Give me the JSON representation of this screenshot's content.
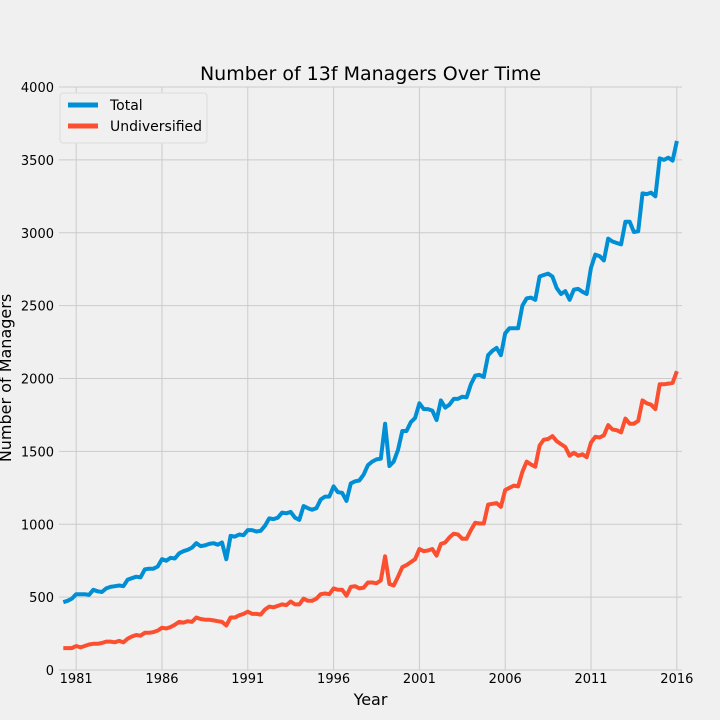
{
  "chart_data": {
    "type": "line",
    "title": "Number of 13f Managers Over Time",
    "xlabel": "Year",
    "ylabel": "Number of Managers",
    "xlim": [
      1980.0,
      2016.3
    ],
    "ylim": [
      0,
      4000
    ],
    "x_ticks": [
      1981,
      1986,
      1991,
      1996,
      2001,
      2006,
      2011,
      2016
    ],
    "y_ticks": [
      0,
      500,
      1000,
      1500,
      2000,
      2500,
      3000,
      3500,
      4000
    ],
    "grid": true,
    "legend_position": "top-left",
    "x": [
      1980.25,
      1980.5,
      1980.75,
      1981.0,
      1981.25,
      1981.5,
      1981.75,
      1982.0,
      1982.25,
      1982.5,
      1982.75,
      1983.0,
      1983.25,
      1983.5,
      1983.75,
      1984.0,
      1984.25,
      1984.5,
      1984.75,
      1985.0,
      1985.25,
      1985.5,
      1985.75,
      1986.0,
      1986.25,
      1986.5,
      1986.75,
      1987.0,
      1987.25,
      1987.5,
      1987.75,
      1988.0,
      1988.25,
      1988.5,
      1988.75,
      1989.0,
      1989.25,
      1989.5,
      1989.75,
      1990.0,
      1990.25,
      1990.5,
      1990.75,
      1991.0,
      1991.25,
      1991.5,
      1991.75,
      1992.0,
      1992.25,
      1992.5,
      1992.75,
      1993.0,
      1993.25,
      1993.5,
      1993.75,
      1994.0,
      1994.25,
      1994.5,
      1994.75,
      1995.0,
      1995.25,
      1995.5,
      1995.75,
      1996.0,
      1996.25,
      1996.5,
      1996.75,
      1997.0,
      1997.25,
      1997.5,
      1997.75,
      1998.0,
      1998.25,
      1998.5,
      1998.75,
      1999.0,
      1999.25,
      1999.5,
      1999.75,
      2000.0,
      2000.25,
      2000.5,
      2000.75,
      2001.0,
      2001.25,
      2001.5,
      2001.75,
      2002.0,
      2002.25,
      2002.5,
      2002.75,
      2003.0,
      2003.25,
      2003.5,
      2003.75,
      2004.0,
      2004.25,
      2004.5,
      2004.75,
      2005.0,
      2005.25,
      2005.5,
      2005.75,
      2006.0,
      2006.25,
      2006.5,
      2006.75,
      2007.0,
      2007.25,
      2007.5,
      2007.75,
      2008.0,
      2008.25,
      2008.5,
      2008.75,
      2009.0,
      2009.25,
      2009.5,
      2009.75,
      2010.0,
      2010.25,
      2010.5,
      2010.75,
      2011.0,
      2011.25,
      2011.5,
      2011.75,
      2012.0,
      2012.25,
      2012.5,
      2012.75,
      2013.0,
      2013.25,
      2013.5,
      2013.75,
      2014.0,
      2014.25,
      2014.5,
      2014.75,
      2015.0,
      2015.25,
      2015.5,
      2015.75,
      2016.0
    ],
    "series": [
      {
        "name": "Total",
        "color": "#008fd5",
        "values": [
          465,
          475,
          490,
          520,
          520,
          520,
          515,
          550,
          540,
          535,
          560,
          570,
          575,
          580,
          575,
          620,
          630,
          640,
          635,
          690,
          695,
          695,
          710,
          760,
          750,
          770,
          765,
          800,
          815,
          825,
          840,
          870,
          850,
          855,
          865,
          870,
          860,
          875,
          760,
          920,
          915,
          930,
          925,
          960,
          960,
          950,
          955,
          990,
          1040,
          1035,
          1045,
          1080,
          1075,
          1085,
          1045,
          1030,
          1125,
          1110,
          1100,
          1110,
          1170,
          1190,
          1190,
          1260,
          1220,
          1215,
          1160,
          1280,
          1295,
          1300,
          1340,
          1405,
          1430,
          1445,
          1450,
          1690,
          1400,
          1430,
          1510,
          1640,
          1640,
          1700,
          1730,
          1830,
          1790,
          1790,
          1780,
          1715,
          1850,
          1800,
          1820,
          1860,
          1860,
          1875,
          1870,
          1960,
          2020,
          2025,
          2010,
          2160,
          2190,
          2210,
          2160,
          2310,
          2345,
          2345,
          2345,
          2500,
          2550,
          2555,
          2540,
          2700,
          2710,
          2720,
          2700,
          2620,
          2580,
          2600,
          2540,
          2610,
          2615,
          2595,
          2580,
          2760,
          2850,
          2840,
          2810,
          2960,
          2940,
          2930,
          2920,
          3075,
          3075,
          3005,
          3010,
          3270,
          3265,
          3275,
          3250,
          3510,
          3500,
          3515,
          3495,
          3630
        ]
      },
      {
        "name": "Undiversified",
        "color": "#fc4f30",
        "values": [
          150,
          150,
          150,
          165,
          155,
          165,
          175,
          180,
          180,
          185,
          195,
          195,
          190,
          200,
          190,
          215,
          230,
          240,
          235,
          255,
          255,
          260,
          270,
          290,
          285,
          295,
          310,
          330,
          325,
          335,
          330,
          360,
          350,
          345,
          345,
          340,
          335,
          330,
          305,
          360,
          360,
          375,
          385,
          400,
          385,
          385,
          380,
          415,
          435,
          430,
          440,
          450,
          445,
          470,
          450,
          450,
          490,
          475,
          475,
          490,
          520,
          525,
          520,
          560,
          550,
          550,
          510,
          570,
          575,
          560,
          565,
          600,
          600,
          595,
          615,
          780,
          590,
          580,
          640,
          705,
          720,
          740,
          760,
          830,
          815,
          820,
          830,
          785,
          865,
          875,
          910,
          935,
          930,
          900,
          900,
          960,
          1010,
          1005,
          1005,
          1135,
          1140,
          1145,
          1120,
          1235,
          1250,
          1265,
          1260,
          1360,
          1430,
          1410,
          1395,
          1540,
          1580,
          1585,
          1605,
          1570,
          1550,
          1530,
          1470,
          1490,
          1470,
          1480,
          1460,
          1560,
          1600,
          1595,
          1610,
          1680,
          1650,
          1645,
          1630,
          1725,
          1690,
          1690,
          1710,
          1850,
          1830,
          1820,
          1790,
          1960,
          1960,
          1965,
          1970,
          2050
        ]
      }
    ]
  }
}
